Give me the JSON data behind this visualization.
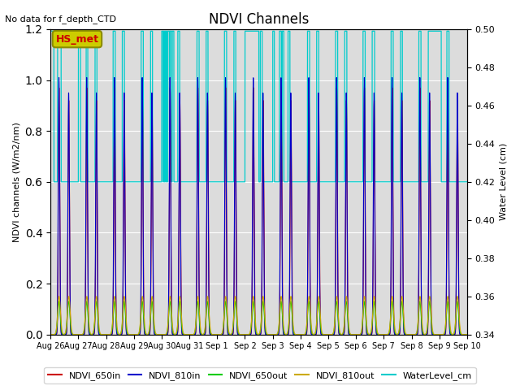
{
  "title": "NDVI Channels",
  "no_data_text": "No data for f_depth_CTD",
  "ylabel_left": "NDVI channels (W/m2/nm)",
  "ylabel_right": "Water Level (cm)",
  "ylim_left": [
    0.0,
    1.2
  ],
  "ylim_right": [
    0.34,
    0.5
  ],
  "background_color": "#dcdcdc",
  "xtick_labels": [
    "Aug 26",
    "Aug 27",
    "Aug 28",
    "Aug 29",
    "Aug 30",
    "Aug 31",
    "Sep 1",
    "Sep 2",
    "Sep 3",
    "Sep 4",
    "Sep 5",
    "Sep 6",
    "Sep 7",
    "Sep 8",
    "Sep 9",
    "Sep 10"
  ],
  "legend_entries": [
    "NDVI_650in",
    "NDVI_810in",
    "NDVI_650out",
    "NDVI_810out",
    "WaterLevel_cm"
  ],
  "legend_colors": [
    "#cc0000",
    "#0000cc",
    "#00cc00",
    "#ccaa00",
    "#00cccc"
  ],
  "hs_met_label": "HS_met",
  "hs_met_bg": "#cccc00",
  "hs_met_fg": "#cc0000",
  "ndvi_peaks_per_day": 2,
  "water_base_cm": 0.42,
  "water_high_cm": 0.499,
  "right_ticks": [
    0.34,
    0.36,
    0.38,
    0.4,
    0.42,
    0.44,
    0.46,
    0.48,
    0.5
  ]
}
